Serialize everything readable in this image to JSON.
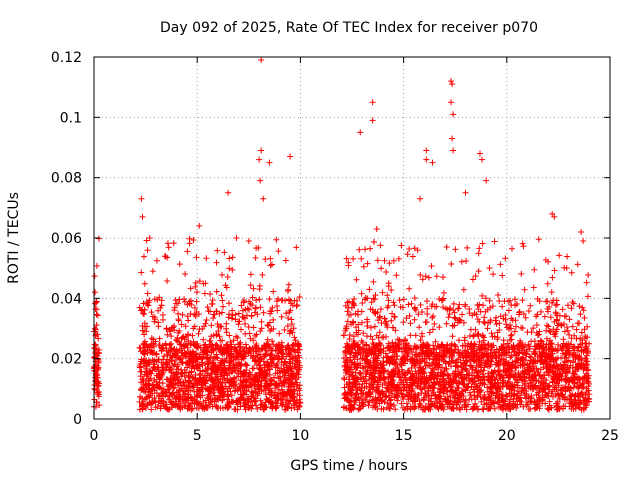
{
  "chart_data": {
    "type": "scatter",
    "title": "Day 092 of 2025, Rate Of TEC Index for receiver p070",
    "xlabel": "GPS time / hours",
    "ylabel": "ROTI / TECUs",
    "xlim": [
      0,
      25
    ],
    "ylim": [
      0,
      0.12
    ],
    "xticks": [
      0,
      5,
      10,
      15,
      20,
      25
    ],
    "yticks": [
      0,
      0.02,
      0.04,
      0.06,
      0.08,
      0.1,
      0.12
    ],
    "xtick_labels": [
      "0",
      "5",
      "10",
      "15",
      "20",
      "25"
    ],
    "ytick_labels": [
      "0",
      "0.02",
      "0.04",
      "0.06",
      "0.08",
      "0.1",
      "0.12"
    ],
    "grid": true,
    "marker": "+",
    "color": "#ff0000",
    "segments": [
      {
        "start": 0.0,
        "end": 0.25
      },
      {
        "start": 2.2,
        "end": 10.0
      },
      {
        "start": 12.1,
        "end": 24.0
      }
    ],
    "notable_points": [
      {
        "x": 0.05,
        "y": 0.042
      },
      {
        "x": 0.1,
        "y": 0.028
      },
      {
        "x": 2.3,
        "y": 0.073
      },
      {
        "x": 2.35,
        "y": 0.067
      },
      {
        "x": 2.7,
        "y": 0.06
      },
      {
        "x": 2.85,
        "y": 0.049
      },
      {
        "x": 5.1,
        "y": 0.064
      },
      {
        "x": 6.5,
        "y": 0.075
      },
      {
        "x": 6.9,
        "y": 0.06
      },
      {
        "x": 7.5,
        "y": 0.059
      },
      {
        "x": 8.1,
        "y": 0.119
      },
      {
        "x": 8.1,
        "y": 0.089
      },
      {
        "x": 8.0,
        "y": 0.086
      },
      {
        "x": 8.2,
        "y": 0.073
      },
      {
        "x": 8.05,
        "y": 0.079
      },
      {
        "x": 8.5,
        "y": 0.085
      },
      {
        "x": 9.5,
        "y": 0.087
      },
      {
        "x": 12.9,
        "y": 0.095
      },
      {
        "x": 13.5,
        "y": 0.105
      },
      {
        "x": 13.5,
        "y": 0.099
      },
      {
        "x": 13.7,
        "y": 0.063
      },
      {
        "x": 15.8,
        "y": 0.073
      },
      {
        "x": 16.1,
        "y": 0.089
      },
      {
        "x": 16.1,
        "y": 0.086
      },
      {
        "x": 16.4,
        "y": 0.085
      },
      {
        "x": 17.3,
        "y": 0.112
      },
      {
        "x": 17.35,
        "y": 0.111
      },
      {
        "x": 17.3,
        "y": 0.105
      },
      {
        "x": 17.4,
        "y": 0.101
      },
      {
        "x": 17.35,
        "y": 0.093
      },
      {
        "x": 17.4,
        "y": 0.089
      },
      {
        "x": 18.0,
        "y": 0.075
      },
      {
        "x": 18.7,
        "y": 0.088
      },
      {
        "x": 18.8,
        "y": 0.086
      },
      {
        "x": 19.0,
        "y": 0.079
      },
      {
        "x": 22.2,
        "y": 0.068
      },
      {
        "x": 22.3,
        "y": 0.067
      },
      {
        "x": 23.6,
        "y": 0.062
      },
      {
        "x": 23.7,
        "y": 0.059
      }
    ]
  }
}
